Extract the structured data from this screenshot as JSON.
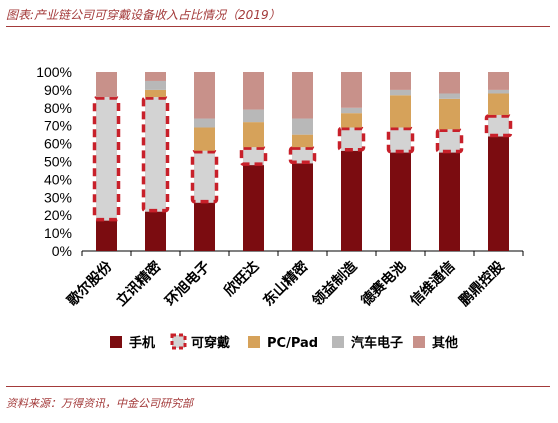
{
  "header": {
    "title": "图表:产业链公司可穿戴设备收入占比情况（2019）"
  },
  "footer": {
    "source": "资料来源：万得资讯，中金公司研究部"
  },
  "colors": {
    "phone": "#7b0c10",
    "wearable_fill": "#d3d3d3",
    "wearable_border": "#c8202a",
    "pc_pad": "#d6a25a",
    "auto": "#b8b8b8",
    "other": "#c8918a"
  },
  "chart_data": {
    "type": "bar",
    "stacked": true,
    "percent": true,
    "categories": [
      "歌尔股份",
      "立讯精密",
      "环旭电子",
      "欣旺达",
      "东山精密",
      "领益制造",
      "德赛电池",
      "信维通信",
      "鹏鼎控股"
    ],
    "series": [
      {
        "name": "手机",
        "values": [
          17,
          22,
          27,
          48,
          49,
          56,
          55,
          55,
          64
        ]
      },
      {
        "name": "可穿戴",
        "values": [
          69,
          64,
          29,
          10,
          9,
          13,
          14,
          13,
          12
        ]
      },
      {
        "name": "PC/Pad",
        "values": [
          0,
          4,
          13,
          14,
          7,
          8,
          18,
          17,
          12
        ]
      },
      {
        "name": "汽车电子",
        "values": [
          0,
          5,
          5,
          7,
          9,
          3,
          3,
          3,
          2
        ]
      },
      {
        "name": "其他",
        "values": [
          14,
          5,
          26,
          21,
          26,
          20,
          10,
          12,
          10
        ]
      }
    ],
    "ylim": [
      0,
      100
    ],
    "yticks": [
      "0%",
      "10%",
      "20%",
      "30%",
      "40%",
      "50%",
      "60%",
      "70%",
      "80%",
      "90%",
      "100%"
    ],
    "highlight_series": "可穿戴",
    "grid": false,
    "legend_position": "bottom"
  }
}
